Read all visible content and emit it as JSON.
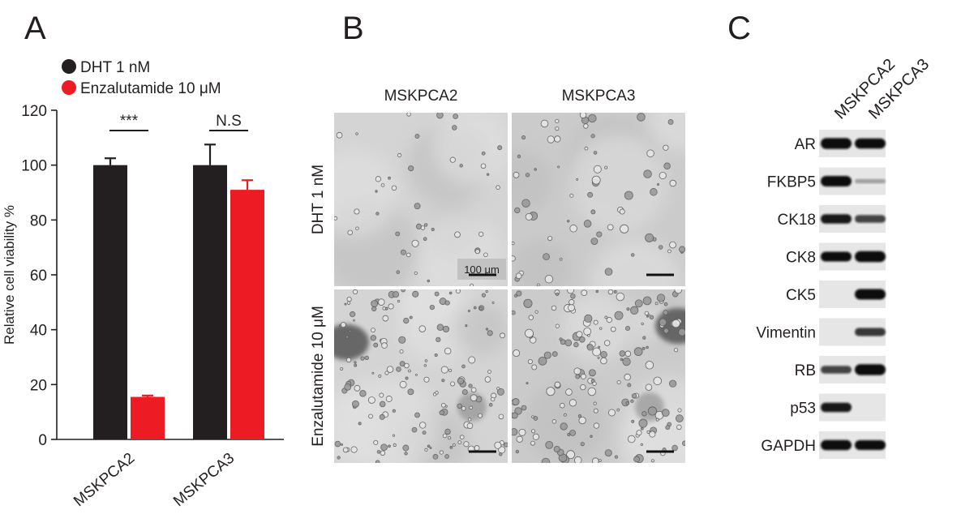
{
  "panels": {
    "a": "A",
    "b": "B",
    "c": "C"
  },
  "chart_data": {
    "type": "bar",
    "categories": [
      "MSKPCA2",
      "MSKPCA3"
    ],
    "series": [
      {
        "name": "DHT 1 nM",
        "values": [
          100,
          100
        ],
        "errors": [
          2.5,
          7.5
        ],
        "color": "#231f20"
      },
      {
        "name": "Enzalutamide 10 μM",
        "values": [
          15.5,
          91
        ],
        "errors": [
          0.5,
          3.5
        ],
        "color": "#ed1c24"
      }
    ],
    "ylabel": "Relative cell viability %",
    "xlabel": "",
    "ylim": [
      0,
      120
    ],
    "yticks": [
      0,
      20,
      40,
      60,
      80,
      100,
      120
    ],
    "grid": false,
    "legend": "top-left",
    "significance": [
      "***",
      "N.S"
    ]
  },
  "micro": {
    "cols": [
      "MSKPCA2",
      "MSKPCA3"
    ],
    "rows": [
      "DHT 1 nM",
      "Enzalutamide 10 μM"
    ],
    "scalebar": "100 μm"
  },
  "blot": {
    "lanes": [
      "MSKPCA2",
      "MSKPCA3"
    ],
    "proteins": [
      {
        "name": "AR",
        "levels": [
          0.95,
          0.85
        ]
      },
      {
        "name": "FKBP5",
        "levels": [
          0.9,
          0.12
        ]
      },
      {
        "name": "CK18",
        "levels": [
          0.75,
          0.55
        ]
      },
      {
        "name": "CK8",
        "levels": [
          0.8,
          0.95
        ]
      },
      {
        "name": "CK5",
        "levels": [
          0.05,
          0.9
        ]
      },
      {
        "name": "Vimentin",
        "levels": [
          0.05,
          0.6
        ]
      },
      {
        "name": "RB",
        "levels": [
          0.55,
          0.95
        ]
      },
      {
        "name": "p53",
        "levels": [
          0.75,
          0.05
        ]
      },
      {
        "name": "GAPDH",
        "levels": [
          0.85,
          0.8
        ]
      }
    ]
  }
}
